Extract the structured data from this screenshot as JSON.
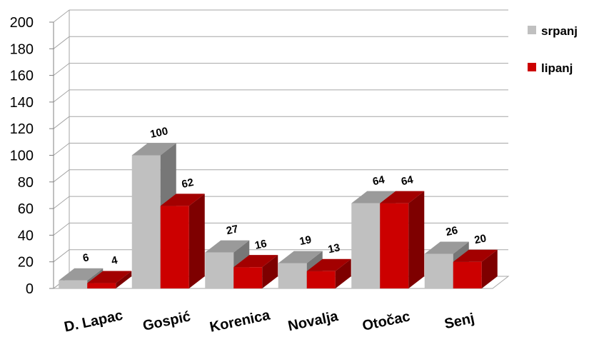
{
  "chart_data": {
    "type": "bar",
    "title": "",
    "xlabel": "",
    "ylabel": "",
    "ylim": [
      0,
      200
    ],
    "yticks": [
      0,
      20,
      40,
      60,
      80,
      100,
      120,
      140,
      160,
      180,
      200
    ],
    "grid": true,
    "three_d": true,
    "legend_position": "right",
    "categories": [
      "D. Lapac",
      "Gospić",
      "Korenica",
      "Novalja",
      "Otočac",
      "Senj"
    ],
    "series": [
      {
        "name": "srpanj",
        "color": "#c0c0c0",
        "values": [
          6,
          100,
          27,
          19,
          64,
          26
        ]
      },
      {
        "name": "lipanj",
        "color": "#cc0000",
        "values": [
          4,
          62,
          16,
          13,
          64,
          20
        ]
      }
    ]
  }
}
